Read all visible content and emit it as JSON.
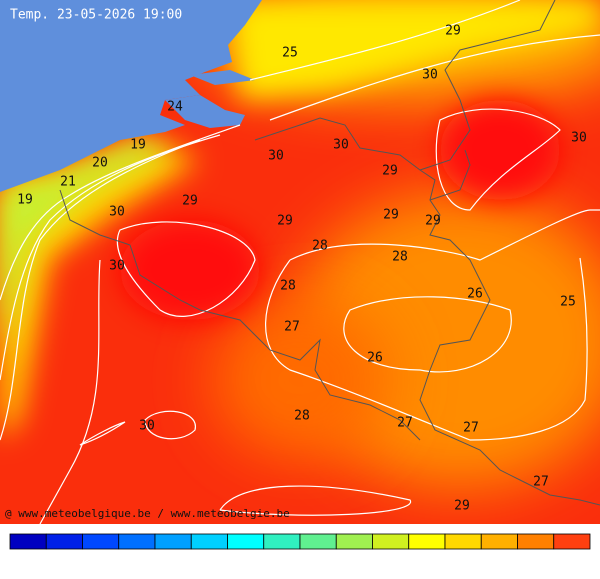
{
  "title": "Temp. 23-05-2026 19:00",
  "credit": "@ www.meteobelgique.be / www.meteobelgie.be",
  "contour_labels": [
    25,
    29,
    30,
    24,
    19,
    20,
    21,
    19,
    30,
    30,
    30,
    29,
    29,
    30,
    29,
    29,
    29,
    28,
    28,
    30,
    28,
    26,
    25,
    27,
    26,
    28,
    27,
    27,
    30,
    27,
    29
  ]
}
